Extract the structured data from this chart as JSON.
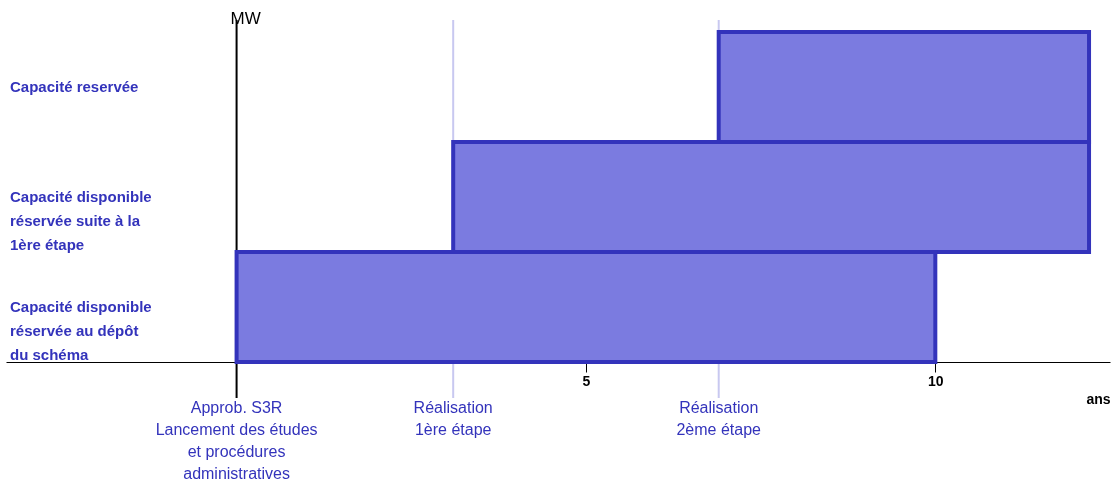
{
  "chart_data": {
    "type": "bar",
    "orientation": "horizontal",
    "categories": [
      "Capacité reservée",
      "Capacité disponible réservée suite à la 1ère étape",
      "Capacité disponible réservée au dépôt du schéma"
    ],
    "base": [
      6.9,
      3.1,
      0
    ],
    "values": [
      5.3,
      9.1,
      10
    ],
    "color": "#7b7be0",
    "xlim": [
      -3.3,
      12.5
    ],
    "xticks": [
      5,
      10
    ],
    "xlabel": "ans",
    "ylabel": "MW",
    "grid": false,
    "ref_lines": [
      {
        "axis": "x",
        "value": 0,
        "color": "#000000",
        "label": "Approb. S3R\nLancement des études et procédures administratives"
      },
      {
        "axis": "x",
        "value": 3.1,
        "color": "#c8c8f0",
        "label": "Réalisation\n1ère étape"
      },
      {
        "axis": "x",
        "value": 6.9,
        "color": "#c8c8f0",
        "label": "Réalisation\n2ème étape"
      }
    ]
  }
}
